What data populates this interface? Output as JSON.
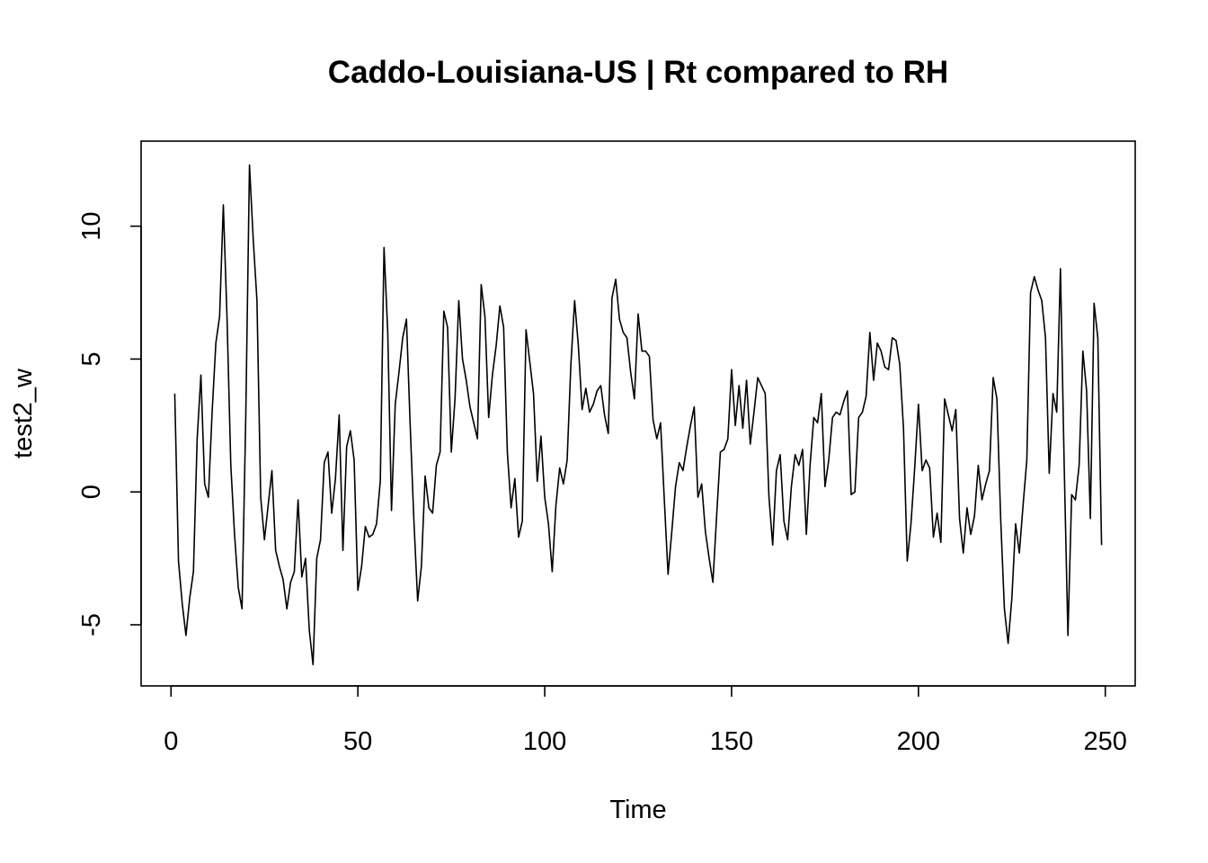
{
  "chart_data": {
    "type": "line",
    "title": "Caddo-Louisiana-US | Rt compared to RH",
    "xlabel": "Time",
    "ylabel": "test2_w",
    "xlim": [
      -8,
      258
    ],
    "ylim": [
      -7.3,
      13.2
    ],
    "x_ticks": [
      0,
      50,
      100,
      150,
      200,
      250
    ],
    "x_tick_labels": [
      "0",
      "50",
      "100",
      "150",
      "200",
      "250"
    ],
    "y_ticks": [
      -5,
      0,
      5,
      10
    ],
    "y_tick_labels": [
      "-5",
      "0",
      "5",
      "10"
    ],
    "grid": false,
    "legend": "none",
    "line_color": "#000000",
    "x_start": 1,
    "values": [
      3.7,
      -2.6,
      -4.2,
      -5.4,
      -4.0,
      -3.0,
      2.0,
      4.4,
      0.3,
      -0.2,
      3.0,
      5.6,
      6.6,
      10.8,
      6.5,
      1.0,
      -1.6,
      -3.6,
      -4.4,
      2.8,
      12.3,
      9.5,
      7.2,
      -0.2,
      -1.8,
      -0.5,
      0.8,
      -2.2,
      -2.8,
      -3.3,
      -4.4,
      -3.4,
      -3.0,
      -0.3,
      -3.2,
      -2.5,
      -5.2,
      -6.5,
      -2.5,
      -1.8,
      1.1,
      1.5,
      -0.8,
      0.5,
      2.9,
      -2.2,
      1.7,
      2.3,
      1.2,
      -3.7,
      -2.8,
      -1.3,
      -1.7,
      -1.6,
      -1.2,
      0.4,
      9.2,
      6.0,
      -0.7,
      3.3,
      4.5,
      5.8,
      6.5,
      2.5,
      -1.1,
      -4.1,
      -2.8,
      0.6,
      -0.6,
      -0.8,
      1.0,
      1.5,
      6.8,
      6.2,
      1.5,
      3.5,
      7.2,
      5.0,
      4.2,
      3.2,
      2.6,
      2.0,
      7.8,
      6.6,
      2.8,
      4.4,
      5.5,
      7.0,
      6.2,
      1.5,
      -0.6,
      0.5,
      -1.7,
      -1.1,
      6.1,
      4.9,
      3.7,
      0.4,
      2.1,
      -0.2,
      -1.2,
      -3.0,
      -0.5,
      0.9,
      0.3,
      1.2,
      4.8,
      7.2,
      5.5,
      3.1,
      3.9,
      3.0,
      3.3,
      3.8,
      4.0,
      2.9,
      2.2,
      7.3,
      8.0,
      6.5,
      6.0,
      5.8,
      4.5,
      3.5,
      6.7,
      5.3,
      5.3,
      5.1,
      2.7,
      2.0,
      2.6,
      -0.3,
      -3.1,
      -1.5,
      0.2,
      1.1,
      0.8,
      1.7,
      2.5,
      3.2,
      -0.2,
      0.3,
      -1.5,
      -2.5,
      -3.4,
      -0.9,
      1.5,
      1.6,
      2.0,
      4.6,
      2.5,
      4.0,
      2.4,
      4.2,
      1.8,
      3.0,
      4.3,
      4.0,
      3.7,
      -0.2,
      -2.0,
      0.8,
      1.4,
      -1.1,
      -1.8,
      0.2,
      1.4,
      1.0,
      1.6,
      -1.6,
      1.0,
      2.8,
      2.6,
      3.7,
      0.2,
      1.2,
      2.8,
      3.0,
      2.9,
      3.4,
      3.8,
      -0.1,
      0.0,
      2.8,
      3.0,
      3.6,
      6.0,
      4.2,
      5.6,
      5.3,
      4.7,
      4.6,
      5.8,
      5.7,
      4.8,
      2.4,
      -2.6,
      -1.2,
      0.9,
      3.3,
      0.8,
      1.2,
      0.9,
      -1.7,
      -0.8,
      -1.9,
      3.5,
      2.9,
      2.3,
      3.1,
      -1.0,
      -2.3,
      -0.6,
      -1.6,
      -0.9,
      1.0,
      -0.3,
      0.3,
      0.8,
      4.3,
      3.5,
      -1.0,
      -4.4,
      -5.7,
      -4.0,
      -1.2,
      -2.3,
      -0.5,
      1.2,
      7.5,
      8.1,
      7.6,
      7.2,
      5.8,
      0.7,
      3.7,
      3.0,
      8.4,
      1.0,
      -5.4,
      -0.1,
      -0.3,
      1.0,
      5.3,
      3.8,
      -1.0,
      7.1,
      5.8,
      -2.0
    ]
  }
}
